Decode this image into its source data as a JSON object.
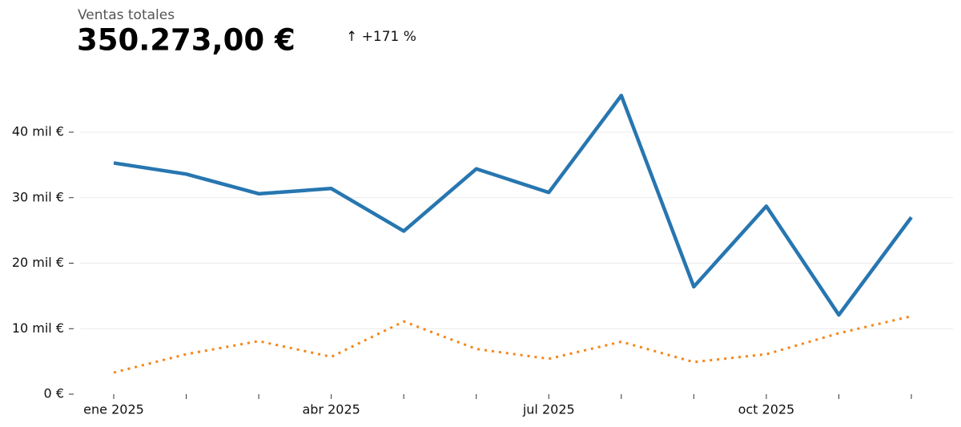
{
  "header": {
    "title": "Ventas totales",
    "value": "350.273,00 €",
    "change": "↑ +171 %"
  },
  "chart_data": {
    "type": "line",
    "categories": [
      "ene 2025",
      null,
      null,
      "abr 2025",
      null,
      null,
      "jul 2025",
      null,
      null,
      "oct 2025",
      null,
      null
    ],
    "series": [
      {
        "color": "#2776b0",
        "linestyle": "solid",
        "values": [
          35300,
          33600,
          30600,
          31400,
          24900,
          34400,
          30800,
          45600,
          16400,
          28700,
          12100,
          27000
        ]
      },
      {
        "color": "#f58518",
        "linestyle": "dotted",
        "values": [
          3300,
          6100,
          8100,
          5700,
          11100,
          6900,
          5400,
          8000,
          4900,
          6100,
          9300,
          11900
        ]
      }
    ],
    "ylim": [
      0,
      48000
    ],
    "yticks": [
      {
        "value": 0,
        "label": "0 €"
      },
      {
        "value": 10000,
        "label": "10 mil €"
      },
      {
        "value": 20000,
        "label": "20 mil €"
      },
      {
        "value": 30000,
        "label": "30 mil €"
      },
      {
        "value": 40000,
        "label": "40 mil €"
      }
    ],
    "grid": true
  }
}
